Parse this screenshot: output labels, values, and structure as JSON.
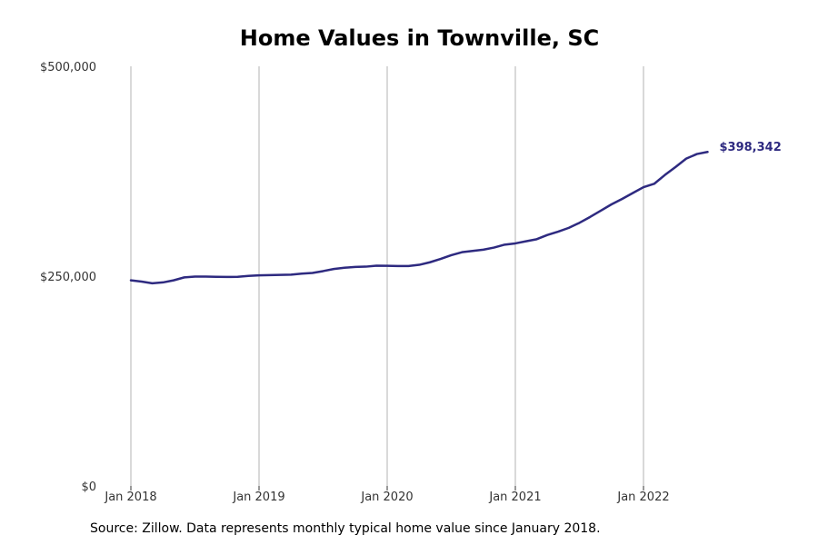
{
  "chart_data": {
    "type": "line",
    "title": "Home Values in Townville, SC",
    "xlabel": "",
    "ylabel": "",
    "ylim": [
      0,
      500000
    ],
    "y_ticks": [
      {
        "value": 0,
        "label": "$0"
      },
      {
        "value": 250000,
        "label": "$250,000"
      },
      {
        "value": 500000,
        "label": "$500,000"
      }
    ],
    "x_ticks": [
      {
        "value": "2018-01",
        "label": "Jan 2018"
      },
      {
        "value": "2019-01",
        "label": "Jan 2019"
      },
      {
        "value": "2020-01",
        "label": "Jan 2020"
      },
      {
        "value": "2021-01",
        "label": "Jan 2021"
      },
      {
        "value": "2022-01",
        "label": "Jan 2022"
      }
    ],
    "grid": "vertical",
    "series": [
      {
        "color": "#2e2a80",
        "x": [
          "2018-01",
          "2018-02",
          "2018-03",
          "2018-04",
          "2018-05",
          "2018-06",
          "2018-07",
          "2018-08",
          "2018-09",
          "2018-10",
          "2018-11",
          "2018-12",
          "2019-01",
          "2019-02",
          "2019-03",
          "2019-04",
          "2019-05",
          "2019-06",
          "2019-07",
          "2019-08",
          "2019-09",
          "2019-10",
          "2019-11",
          "2019-12",
          "2020-01",
          "2020-02",
          "2020-03",
          "2020-04",
          "2020-05",
          "2020-06",
          "2020-07",
          "2020-08",
          "2020-09",
          "2020-10",
          "2020-11",
          "2020-12",
          "2021-01",
          "2021-02",
          "2021-03",
          "2021-04",
          "2021-05",
          "2021-06",
          "2021-07",
          "2021-08",
          "2021-09",
          "2021-10",
          "2021-11",
          "2021-12",
          "2022-01",
          "2022-02",
          "2022-03",
          "2022-04",
          "2022-05",
          "2022-06",
          "2022-07"
        ],
        "y": [
          245000,
          243500,
          241500,
          242500,
          245000,
          248500,
          249500,
          249500,
          249200,
          249000,
          249200,
          250300,
          251000,
          251200,
          251500,
          251700,
          253000,
          253800,
          256000,
          258500,
          260000,
          261000,
          261300,
          262500,
          262300,
          262000,
          262000,
          263500,
          266500,
          270500,
          275000,
          278500,
          280000,
          281500,
          284000,
          287500,
          289000,
          291500,
          294000,
          299000,
          303000,
          307500,
          313500,
          320500,
          328000,
          335500,
          342000,
          349000,
          356000,
          360000,
          370500,
          380000,
          390000,
          395500,
          398000
        ],
        "end_label": "$398,342"
      }
    ]
  },
  "source": "Source: Zillow. Data represents monthly typical home value since January 2018."
}
